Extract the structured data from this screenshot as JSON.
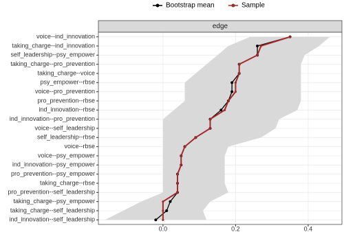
{
  "chart_data": {
    "type": "line",
    "orientation": "horizontal",
    "strip": "edge",
    "categories": [
      "voice--ind_innovation",
      "taking_charge--ind_innovation",
      "self_leadership--psy_empower",
      "taking_charge--pro_prevention",
      "taking_charge--voice",
      "psy_empower--rbse",
      "voice--pro_prevention",
      "pro_prevention--rbse",
      "ind_innovation--rbse",
      "ind_innovation--pro_prevention",
      "voice--self_leadership",
      "self_leadership--rbse",
      "voice--rbse",
      "voice--psy_empower",
      "ind_innovation--psy_empower",
      "pro_prevention--psy_empower",
      "taking_charge--rbse",
      "pro_prevention--self_leadership",
      "taking_charge--psy_empower",
      "taking_charge--self_leadership",
      "ind_innovation--self_leadership"
    ],
    "series": [
      {
        "name": "Bootstrap mean",
        "color": "#000000",
        "values": [
          0.35,
          0.26,
          0.26,
          0.21,
          0.21,
          0.19,
          0.19,
          0.18,
          0.16,
          0.13,
          0.13,
          0.09,
          0.06,
          0.05,
          0.05,
          0.04,
          0.04,
          0.04,
          0.02,
          0.01,
          -0.02
        ]
      },
      {
        "name": "Sample",
        "color": "#a52a2a",
        "values": [
          0.35,
          0.27,
          0.26,
          0.21,
          0.21,
          0.2,
          0.2,
          0.18,
          0.17,
          0.13,
          0.13,
          0.09,
          0.06,
          0.05,
          0.05,
          0.04,
          0.04,
          0.04,
          0.0,
          0.0,
          0.0
        ]
      }
    ],
    "band": {
      "color": "#d9d9d9",
      "lower": [
        0.24,
        0.18,
        0.15,
        0.12,
        0.09,
        0.06,
        0.06,
        0.06,
        0.03,
        0.0,
        0.0,
        0.0,
        0.0,
        0.0,
        0.0,
        0.0,
        0.0,
        0.0,
        -0.06,
        -0.11,
        -0.16
      ],
      "upper": [
        0.46,
        0.43,
        0.39,
        0.38,
        0.38,
        0.38,
        0.38,
        0.38,
        0.37,
        0.32,
        0.31,
        0.27,
        0.18,
        0.17,
        0.17,
        0.17,
        0.17,
        0.18,
        0.13,
        0.11,
        0.12
      ]
    },
    "xlim": [
      -0.178,
      0.493
    ],
    "xticks": [
      {
        "value": 0,
        "label": "0.0"
      },
      {
        "value": 0.2,
        "label": "0.2"
      },
      {
        "value": 0.4,
        "label": "0.4"
      }
    ],
    "grid": true,
    "legend": "top"
  }
}
